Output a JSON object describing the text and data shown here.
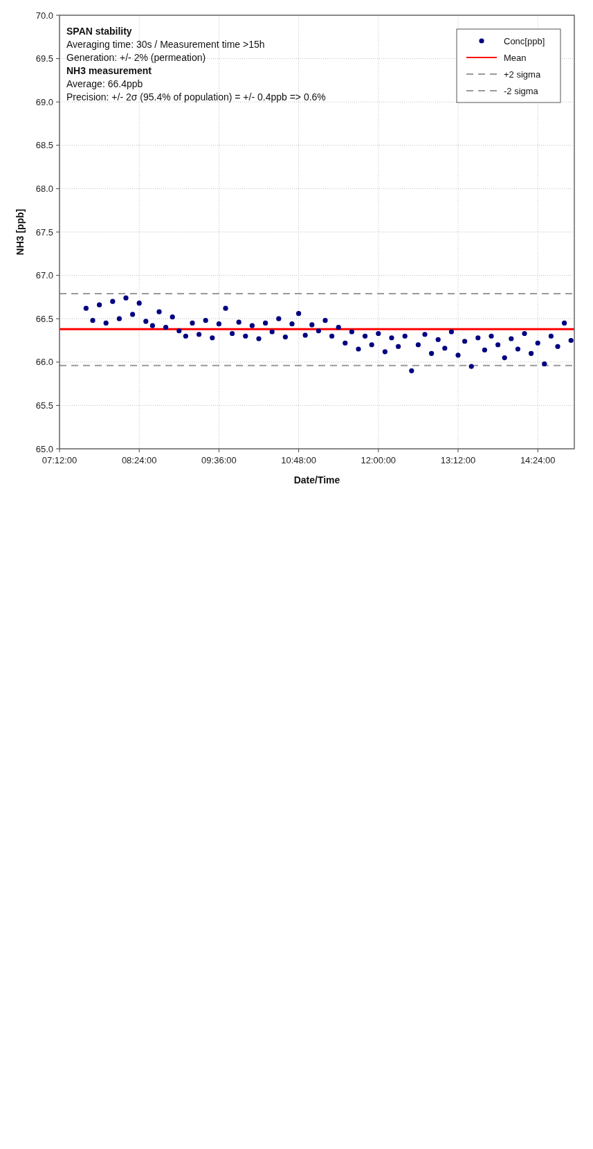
{
  "chart_data": {
    "type": "scatter",
    "xlabel": "Date/Time",
    "ylabel": "NH3 [ppb]",
    "xlim": [
      7.2,
      14.95
    ],
    "xticks": [
      {
        "value": 7.2,
        "label": "07:12:00"
      },
      {
        "value": 8.4,
        "label": "08:24:00"
      },
      {
        "value": 9.6,
        "label": "09:36:00"
      },
      {
        "value": 10.8,
        "label": "10:48:00"
      },
      {
        "value": 12,
        "label": "12:00:00"
      },
      {
        "value": 13.2,
        "label": "13:12:00"
      },
      {
        "value": 14.4,
        "label": "14:24:00"
      }
    ],
    "ylim": [
      65,
      70
    ],
    "yticks": [
      {
        "value": 65,
        "label": "65.0"
      },
      {
        "value": 65.5,
        "label": "65.5"
      },
      {
        "value": 66,
        "label": "66.0"
      },
      {
        "value": 66.5,
        "label": "66.5"
      },
      {
        "value": 67,
        "label": "67.0"
      },
      {
        "value": 67.5,
        "label": "67.5"
      },
      {
        "value": 68,
        "label": "68.0"
      },
      {
        "value": 68.5,
        "label": "68.5"
      },
      {
        "value": 69,
        "label": "69.0"
      },
      {
        "value": 69.5,
        "label": "69.5"
      },
      {
        "value": 70,
        "label": "70.0"
      }
    ],
    "grid": true,
    "legend": "top right",
    "marker": "circle",
    "series": [
      {
        "name": "Conc[ppb]",
        "color": "#000080",
        "x": [
          7.6,
          7.7,
          7.8,
          7.9,
          8.0,
          8.1,
          8.2,
          8.3,
          8.4,
          8.5,
          8.6,
          8.7,
          8.8,
          8.9,
          9.0,
          9.1,
          9.2,
          9.3,
          9.4,
          9.5,
          9.6,
          9.7,
          9.8,
          9.9,
          10.0,
          10.1,
          10.2,
          10.3,
          10.4,
          10.5,
          10.6,
          10.7,
          10.8,
          10.9,
          11.0,
          11.1,
          11.2,
          11.3,
          11.4,
          11.5,
          11.6,
          11.7,
          11.8,
          11.9,
          12.0,
          12.1,
          12.2,
          12.3,
          12.4,
          12.5,
          12.6,
          12.7,
          12.8,
          12.9,
          13.0,
          13.1,
          13.2,
          13.3,
          13.4,
          13.5,
          13.6,
          13.7,
          13.8,
          13.9,
          14.0,
          14.1,
          14.2,
          14.3,
          14.4,
          14.5,
          14.6,
          14.7,
          14.8,
          14.9
        ],
        "values": [
          66.62,
          66.48,
          66.66,
          66.45,
          66.7,
          66.5,
          66.74,
          66.55,
          66.68,
          66.47,
          66.42,
          66.58,
          66.4,
          66.52,
          66.36,
          66.3,
          66.45,
          66.32,
          66.48,
          66.28,
          66.44,
          66.62,
          66.33,
          66.46,
          66.3,
          66.42,
          66.27,
          66.45,
          66.35,
          66.5,
          66.29,
          66.44,
          66.56,
          66.31,
          66.43,
          66.36,
          66.48,
          66.3,
          66.4,
          66.22,
          66.35,
          66.15,
          66.3,
          66.2,
          66.33,
          66.12,
          66.28,
          66.18,
          66.3,
          65.9,
          66.2,
          66.32,
          66.1,
          66.26,
          66.16,
          66.35,
          66.08,
          66.24,
          65.95,
          66.28,
          66.14,
          66.3,
          66.2,
          66.05,
          66.27,
          66.15,
          66.33,
          66.1,
          66.22,
          65.98,
          66.3,
          66.18,
          66.45,
          66.25
        ]
      }
    ],
    "ref_lines": [
      {
        "axis": "y",
        "value": 66.38,
        "label": "Mean",
        "color": "#ff0000",
        "line_style": "solid"
      },
      {
        "axis": "y",
        "value": 66.79,
        "label": "+2 sigma",
        "color": "#999999",
        "line_style": "dashed"
      },
      {
        "axis": "y",
        "value": 65.96,
        "label": "-2 sigma",
        "color": "#999999",
        "line_style": "dashed"
      }
    ],
    "annotations": [
      "SPAN stability",
      "Averaging time: 30s / Measurement time >15h",
      "Generation: +/- 2% (permeation)",
      "NH3 measurement",
      "Average: 66.4ppb",
      "Precision: +/- 2σ (95.4% of population) = +/- 0.4ppb => 0.6%"
    ]
  }
}
